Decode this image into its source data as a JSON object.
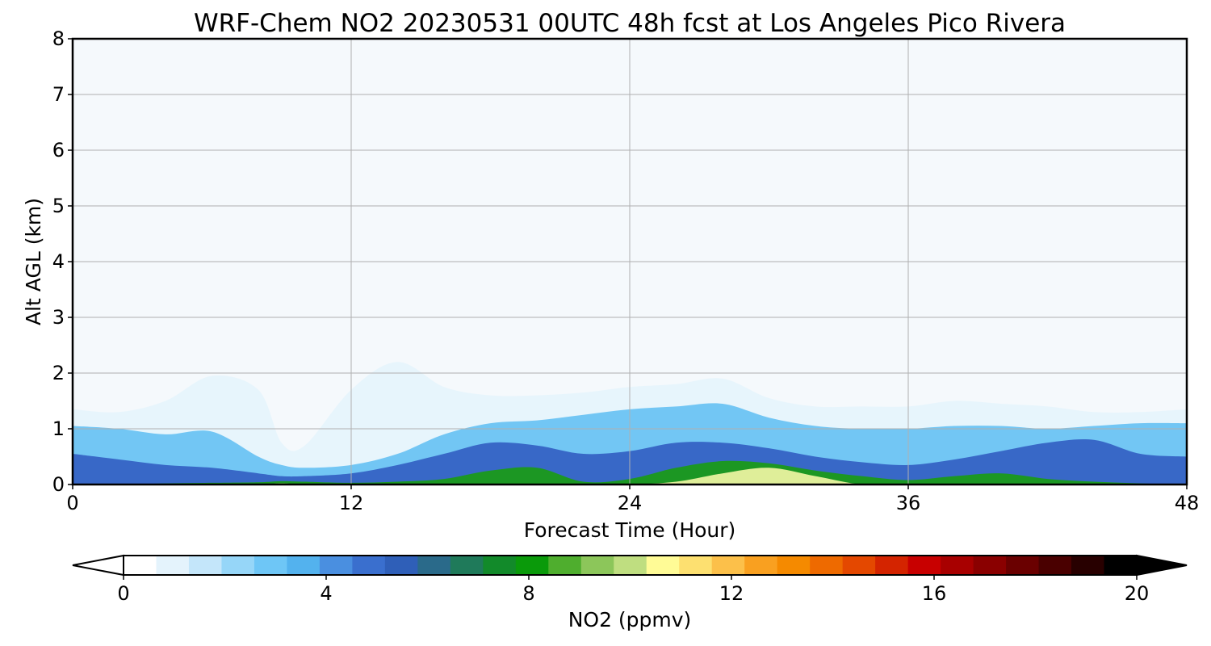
{
  "chart_data": {
    "type": "heatmap",
    "title": "WRF-Chem NO2  20230531 00UTC 48h fcst at Los Angeles Pico Rivera",
    "xlabel": "Forecast Time (Hour)",
    "ylabel": "Alt AGL (km)",
    "xlim": [
      0,
      48
    ],
    "ylim": [
      0,
      8
    ],
    "xticks": [
      "0",
      "12",
      "24",
      "36",
      "48"
    ],
    "yticks": [
      "0",
      "1",
      "2",
      "3",
      "4",
      "5",
      "6",
      "7",
      "8"
    ],
    "grid": true,
    "colorbar": {
      "label": "NO2  (ppmv)",
      "range": [
        0,
        20
      ],
      "ticks": [
        "0",
        "4",
        "8",
        "12",
        "16",
        "20"
      ],
      "extend": "both",
      "colors": [
        "#ffffff",
        "#e4f3fc",
        "#c4e6fa",
        "#96d6f8",
        "#6ec6f6",
        "#53b2ee",
        "#4a8fe0",
        "#3a6fce",
        "#2f5fb8",
        "#2a6a8a",
        "#1f7a5a",
        "#128a2a",
        "#0a9a0a",
        "#4fae2e",
        "#8cc65a",
        "#bfde80",
        "#fffb96",
        "#fde070",
        "#fcc04a",
        "#f9a020",
        "#f58a00",
        "#ee6a00",
        "#e44800",
        "#d42400",
        "#c80000",
        "#a80000",
        "#8a0000",
        "#6a0000",
        "#4a0000",
        "#280000",
        "#000000"
      ]
    },
    "hours": [
      0,
      2,
      4,
      6,
      8,
      9,
      10,
      12,
      14,
      16,
      18,
      20,
      22,
      24,
      26,
      28,
      30,
      32,
      34,
      36,
      38,
      40,
      42,
      44,
      46,
      48
    ],
    "layer_tops_km": {
      "above_0.3_ppmv": [
        1.35,
        1.3,
        1.5,
        1.95,
        1.7,
        0.75,
        0.7,
        1.7,
        2.2,
        1.75,
        1.6,
        1.6,
        1.65,
        1.75,
        1.8,
        1.9,
        1.55,
        1.4,
        1.4,
        1.4,
        1.5,
        1.45,
        1.4,
        1.3,
        1.3,
        1.35
      ],
      "above_2_ppmv": [
        1.05,
        1.0,
        0.9,
        0.95,
        0.5,
        0.35,
        0.3,
        0.35,
        0.55,
        0.9,
        1.1,
        1.15,
        1.25,
        1.35,
        1.4,
        1.45,
        1.2,
        1.05,
        1.0,
        1.0,
        1.05,
        1.05,
        1.0,
        1.05,
        1.1,
        1.1
      ],
      "above_4.5_ppmv": [
        0.55,
        0.45,
        0.35,
        0.3,
        0.2,
        0.15,
        0.15,
        0.2,
        0.35,
        0.55,
        0.75,
        0.7,
        0.55,
        0.6,
        0.75,
        0.75,
        0.65,
        0.5,
        0.4,
        0.35,
        0.45,
        0.6,
        0.75,
        0.8,
        0.55,
        0.5
      ],
      "above_7_ppmv": [
        0.0,
        0.0,
        0.02,
        0.03,
        0.04,
        0.06,
        0.05,
        0.03,
        0.05,
        0.1,
        0.25,
        0.3,
        0.05,
        0.1,
        0.3,
        0.42,
        0.38,
        0.25,
        0.15,
        0.08,
        0.15,
        0.2,
        0.1,
        0.05,
        0.02,
        0.0
      ],
      "above_9.5_ppmv": [
        0,
        0,
        0,
        0,
        0,
        0.02,
        0,
        0,
        0,
        0,
        0,
        0,
        0,
        0,
        0.05,
        0.2,
        0.3,
        0.15,
        0,
        0,
        0,
        0,
        0,
        0,
        0,
        0
      ]
    }
  }
}
